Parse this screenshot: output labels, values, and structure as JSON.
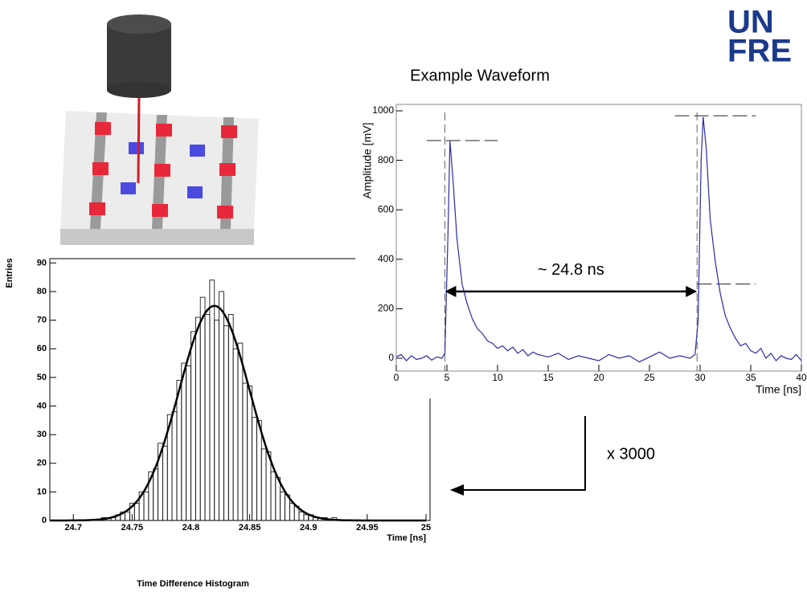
{
  "logo": {
    "line1": "UN",
    "line2": "FRE"
  },
  "scale_note": "x 3000",
  "chart_data": [
    {
      "type": "histogram",
      "title": "Time Difference Histogram",
      "x_label": "Time [ns]",
      "y_label": "Entries",
      "bins": [
        24.68,
        24.684,
        24.688,
        24.692,
        24.696,
        24.7,
        24.704,
        24.708,
        24.712,
        24.716,
        24.72,
        24.724,
        24.728,
        24.732,
        24.736,
        24.74,
        24.744,
        24.748,
        24.752,
        24.756,
        24.76,
        24.764,
        24.768,
        24.772,
        24.776,
        24.78,
        24.784,
        24.788,
        24.792,
        24.796,
        24.8,
        24.804,
        24.808,
        24.812,
        24.816,
        24.82,
        24.824,
        24.828,
        24.832,
        24.836,
        24.84,
        24.844,
        24.848,
        24.852,
        24.856,
        24.86,
        24.864,
        24.868,
        24.872,
        24.876,
        24.88,
        24.884,
        24.888,
        24.892,
        24.896,
        24.9,
        24.904,
        24.908,
        24.912,
        24.916,
        24.92,
        24.924,
        24.928,
        24.932,
        24.936,
        24.94,
        24.944,
        24.948,
        24.952,
        24.956,
        24.96,
        24.964,
        24.968,
        24.972,
        24.976,
        24.98,
        24.984,
        24.988,
        24.992,
        24.996,
        25.0
      ],
      "values": [
        0,
        0,
        0,
        0,
        0,
        0,
        0,
        0,
        0,
        0,
        0,
        1,
        1,
        1,
        2,
        3,
        3,
        6,
        6,
        10,
        10,
        17,
        18,
        27,
        26,
        37,
        38,
        49,
        55,
        54,
        66,
        71,
        78,
        72,
        84,
        70,
        80,
        68,
        72,
        60,
        62,
        48,
        47,
        36,
        35,
        25,
        24,
        17,
        15,
        10,
        9,
        6,
        5,
        3,
        2,
        2,
        1,
        1,
        1,
        0,
        1,
        0,
        0,
        0,
        0,
        0,
        0,
        0,
        0,
        0,
        0,
        0,
        0,
        0,
        0,
        0,
        0,
        0,
        0,
        0
      ],
      "color": "#000000",
      "fit": {
        "amplitude": 75,
        "mean": 24.82,
        "sigma": 0.03,
        "color": "#000000"
      },
      "xlim": [
        24.68,
        25.0
      ],
      "ylim": [
        0,
        91.5
      ],
      "xticks": [
        24.7,
        24.75,
        24.8,
        24.85,
        24.9,
        24.95,
        25
      ],
      "yticks": [
        0,
        10,
        20,
        30,
        40,
        50,
        60,
        70,
        80,
        90
      ]
    },
    {
      "type": "line",
      "title": "Example Waveform",
      "x_label": "Time [ns]",
      "y_label": "Amplitude [mV]",
      "x": [
        0,
        0.5,
        1,
        1.5,
        2,
        2.5,
        3,
        3.5,
        4,
        4.5,
        4.8,
        5.1,
        5.3,
        5.6,
        6,
        6.5,
        7,
        7.5,
        8,
        8.5,
        9,
        9.5,
        10,
        10.5,
        11,
        11.5,
        12,
        12.5,
        13,
        13.5,
        14,
        15,
        16,
        17,
        18,
        19,
        20,
        21,
        22,
        23,
        24,
        25,
        26,
        27,
        28,
        29,
        29.5,
        29.8,
        30.1,
        30.3,
        30.6,
        31,
        31.5,
        32,
        32.5,
        33,
        33.5,
        34,
        34.5,
        35,
        35.5,
        36,
        36.5,
        37,
        37.5,
        38,
        38.5,
        39,
        39.5,
        40
      ],
      "values": [
        5,
        15,
        -10,
        10,
        -5,
        0,
        10,
        -8,
        5,
        0,
        20,
        500,
        880,
        720,
        480,
        300,
        220,
        160,
        120,
        100,
        70,
        60,
        40,
        50,
        30,
        45,
        20,
        35,
        10,
        25,
        15,
        5,
        20,
        -5,
        10,
        0,
        -10,
        15,
        0,
        10,
        -15,
        5,
        25,
        0,
        10,
        0,
        15,
        150,
        800,
        975,
        850,
        560,
        390,
        260,
        170,
        120,
        80,
        50,
        60,
        30,
        20,
        40,
        0,
        20,
        -10,
        10,
        0,
        -5,
        15,
        -10
      ],
      "color": "#2a2aa8",
      "xlim": [
        0,
        40
      ],
      "ylim": [
        -52,
        1026
      ],
      "xticks": [
        0,
        5,
        10,
        15,
        20,
        25,
        30,
        35,
        40
      ],
      "yticks": [
        0,
        200,
        400,
        600,
        800,
        1000
      ],
      "markers": {
        "vlines": [
          4.8,
          29.7
        ],
        "hlines": [
          {
            "y": 880,
            "x": [
              3,
              10
            ]
          },
          {
            "y": 980,
            "x": [
              27.5,
              35.5
            ]
          },
          {
            "y": 300,
            "x": [
              29.7,
              35.5
            ]
          }
        ]
      },
      "annotation": {
        "text": "~ 24.8 ns",
        "x": [
          4.8,
          29.7
        ],
        "y": 270
      }
    }
  ]
}
